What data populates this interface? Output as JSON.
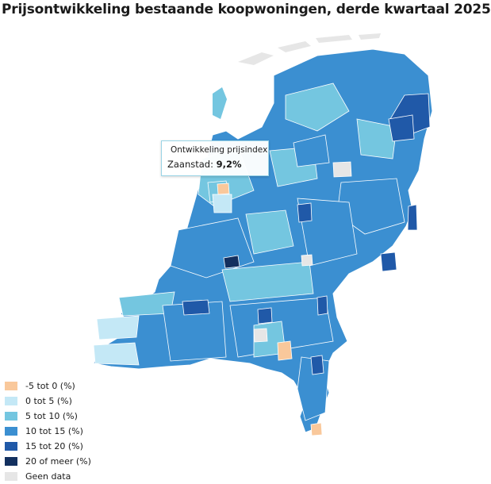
{
  "title": "Prijsontwikkeling bestaande koopwoningen, derde kwartaal 2025",
  "tooltip": {
    "series": "Ontwikkeling prijsindex",
    "place": "Zaanstad:",
    "value": "9,2%"
  },
  "legend": [
    {
      "label": "-5 tot 0 (%)",
      "color": "#f9c89b"
    },
    {
      "label": "0 tot 5 (%)",
      "color": "#c4e8f6"
    },
    {
      "label": "5 tot 10 (%)",
      "color": "#74c6e0"
    },
    {
      "label": "10 tot 15 (%)",
      "color": "#3b8fd1"
    },
    {
      "label": "15 tot 20 (%)",
      "color": "#2059a8"
    },
    {
      "label": "20 of meer (%)",
      "color": "#13305f"
    },
    {
      "label": "Geen data",
      "color": "#e6e6e6"
    }
  ]
}
